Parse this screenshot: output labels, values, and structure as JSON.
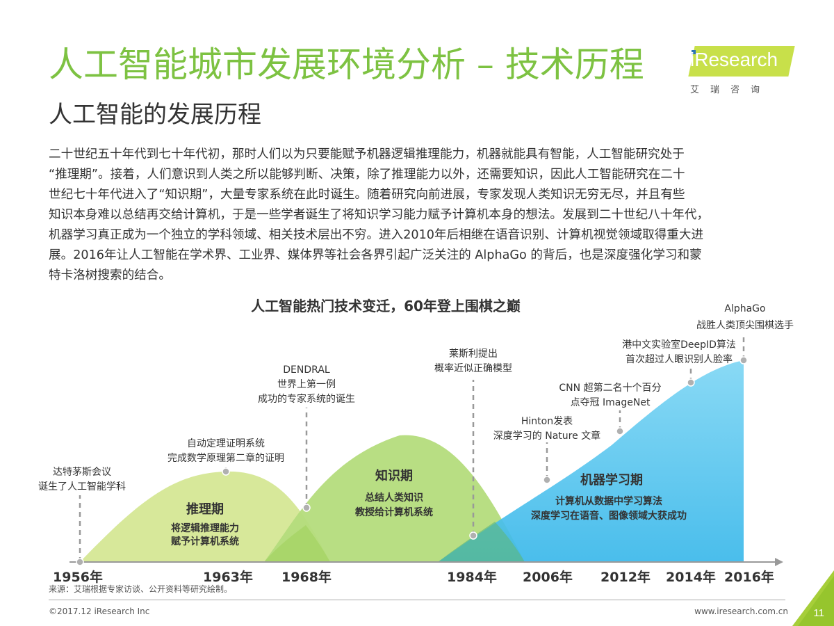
{
  "header": {
    "title": "人工智能城市发展环境分析 – 技术历程",
    "subtitle": "人工智能的发展历程"
  },
  "logo": {
    "text": "iResearch",
    "subtext": "艾瑞咨询"
  },
  "paragraph": [
    "二十世纪五十年代到七十年代初，那时人们以为只要能赋予机器逻辑推理能力，机器就能具有智能，人工智能研究处于",
    "“推理期”。接着，人们意识到人类之所以能够判断、决策，除了推理能力以外，还需要知识，因此人工智能研究在二十",
    "世纪七十年代进入了“知识期”，大量专家系统在此时诞生。随着研究向前进展，专家发现人类知识无穷无尽，并且有些",
    "知识本身难以总结再交给计算机，于是一些学者诞生了将知识学习能力赋予计算机本身的想法。发展到二十世纪八十年代，",
    "机器学习真正成为一个独立的学科领域、相关技术层出不穷。进入2010年后相继在语音识别、计算机视觉领域取得重大进",
    "展。2016年让人工智能在学术界、工业界、媒体界等社会各界引起广泛关注的 AlphaGo 的背后，也是深度强化学习和蒙",
    "特卡洛树搜索的结合。"
  ],
  "diagram": {
    "title": "人工智能热门技术变迁，60年登上围棋之巅",
    "years": [
      "1956年",
      "1963年",
      "1968年",
      "1984年",
      "2006年",
      "2012年",
      "2014年",
      "2016年"
    ],
    "phases": [
      {
        "name": "推理期",
        "line1": "将逻辑推理能力",
        "line2": "赋予计算机系统",
        "color": "#d7e89a"
      },
      {
        "name": "知识期",
        "line1": "总结人类知识",
        "line2": "教授给计算机系统",
        "color": "#b4dc7c"
      },
      {
        "name": "机器学习期",
        "line1": "计算机从数据中学习算法",
        "line2": "深度学习在语音、图像领域大获成功",
        "color": "#5ecbf0"
      }
    ],
    "events": [
      {
        "line1": "达特茅斯会议",
        "line2": "诞生了人工智能学科"
      },
      {
        "line1": "自动定理证明系统",
        "line2": "完成数学原理第二章的证明"
      },
      {
        "line1": "DENDRAL",
        "line2": "世界上第一例",
        "line3": "成功的专家系统的诞生"
      },
      {
        "line1": "莱斯利提出",
        "line2": "概率近似正确模型"
      },
      {
        "line1": "Hinton发表",
        "line2": "深度学习的 Nature 文章"
      },
      {
        "line1": "CNN 超第二名十个百分",
        "line2": "点夺冠 ImageNet"
      },
      {
        "line1": "港中文实验室DeepID算法",
        "line2": "首次超过人眼识别人脸率"
      },
      {
        "line1": "AlphaGo",
        "line2": "战胜人类顶尖围棋选手"
      }
    ]
  },
  "footer": {
    "source": "来源：艾瑞根据专家访谈、公开资料等研究绘制。",
    "copyright": "©2017.12 iResearch Inc",
    "website": "www.iresearch.com.cn",
    "page": "11"
  },
  "colors": {
    "title": "#7dc242",
    "accent": "#c8e04a",
    "corner": "#a6ce39",
    "dashed": "#999999"
  }
}
